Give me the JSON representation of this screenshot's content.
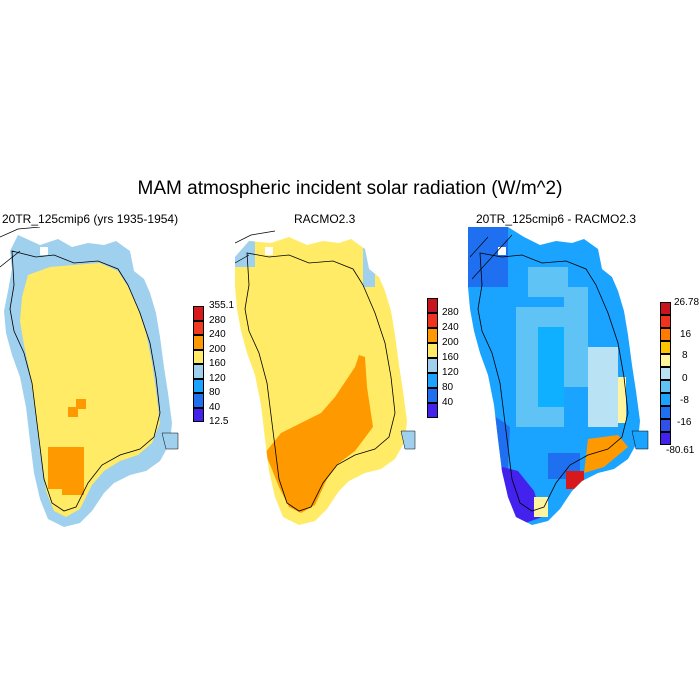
{
  "figure": {
    "title": "MAM atmospheric incident solar radiation (W/m^2)"
  },
  "panels": [
    {
      "id": "model",
      "title": "20TR_125cmip6 (yrs 1935-1954)",
      "colorbar": {
        "labels": [
          "355.1",
          "280",
          "240",
          "200",
          "160",
          "120",
          "80",
          "40",
          "12.5"
        ],
        "colors": [
          "#d7191c",
          "#f03b20",
          "#ff9900",
          "#ffeb66",
          "#9fd0ee",
          "#1aa3ff",
          "#1e70f0",
          "#4422ee"
        ]
      }
    },
    {
      "id": "obs",
      "title": "RACMO2.3",
      "colorbar": {
        "labels": [
          "280",
          "240",
          "200",
          "160",
          "120",
          "80",
          "40"
        ],
        "colors": [
          "#c8141e",
          "#f0321e",
          "#ff9900",
          "#ffeb66",
          "#9fd0ee",
          "#1aa3ff",
          "#1e70f0",
          "#4422ee"
        ]
      }
    },
    {
      "id": "diff",
      "title": "20TR_125cmip6 - RACMO2.3",
      "colorbar": {
        "labels": [
          "26.78",
          "16",
          "8",
          "0",
          "-8",
          "-16",
          "-80.61"
        ],
        "colors": [
          "#c8141e",
          "#f0321e",
          "#ff7a00",
          "#ffc400",
          "#fff59e",
          "#b9e2f5",
          "#5fc3f5",
          "#1aa3ff",
          "#1e70f0",
          "#3050e8",
          "#4422ee"
        ]
      }
    }
  ]
}
